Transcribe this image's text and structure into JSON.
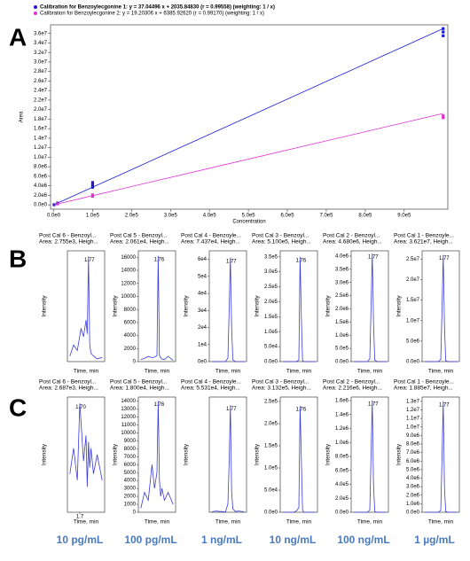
{
  "panel_labels": [
    "A",
    "B",
    "C"
  ],
  "concentrations": [
    "10 pg/mL",
    "100 pg/mL",
    "1 ng/mL",
    "10 ng/mL",
    "100 ng/mL",
    "1 µg/mL"
  ],
  "chart_data": [
    {
      "type": "scatter",
      "xlabel": "Concentration",
      "ylabel": "Area",
      "xlim": [
        -8000,
        1012000
      ],
      "ylim": [
        -900000,
        37800000
      ],
      "xticks": [
        {
          "value": 0,
          "label": "0.0e0"
        },
        {
          "value": 100000,
          "label": "1.0e5"
        },
        {
          "value": 200000,
          "label": "2.0e5"
        },
        {
          "value": 300000,
          "label": "3.0e5"
        },
        {
          "value": 400000,
          "label": "4.0e5"
        },
        {
          "value": 500000,
          "label": "5.0e5"
        },
        {
          "value": 600000,
          "label": "6.0e5"
        },
        {
          "value": 700000,
          "label": "7.0e5"
        },
        {
          "value": 800000,
          "label": "8.0e5"
        },
        {
          "value": 900000,
          "label": "9.0e5"
        }
      ],
      "yticks": [
        {
          "value": 0,
          "label": "0.0e0"
        },
        {
          "value": 2000000,
          "label": "2.0e6"
        },
        {
          "value": 4000000,
          "label": "4.0e6"
        },
        {
          "value": 6000000,
          "label": "6.0e6"
        },
        {
          "value": 8000000,
          "label": "8.0e6"
        },
        {
          "value": 10000000,
          "label": "1.0e7"
        },
        {
          "value": 12000000,
          "label": "1.2e7"
        },
        {
          "value": 14000000,
          "label": "1.4e7"
        },
        {
          "value": 16000000,
          "label": "1.6e7"
        },
        {
          "value": 18000000,
          "label": "1.8e7"
        },
        {
          "value": 20000000,
          "label": "2.0e7"
        },
        {
          "value": 22000000,
          "label": "2.2e7"
        },
        {
          "value": 24000000,
          "label": "2.4e7"
        },
        {
          "value": 26000000,
          "label": "2.6e7"
        },
        {
          "value": 28000000,
          "label": "2.8e7"
        },
        {
          "value": 30000000,
          "label": "3.0e7"
        },
        {
          "value": 32000000,
          "label": "3.2e7"
        },
        {
          "value": 34000000,
          "label": "3.4e7"
        },
        {
          "value": 36000000,
          "label": "3.6e7"
        }
      ],
      "series": [
        {
          "name": "Calibration for Benzoylecgonine 1: y = 37.04496 x + 2035.84830 (r = 0.99558) (weighting: 1 / x)",
          "color": "#1a1ad6",
          "x": [
            1000,
            10000,
            100000,
            100000,
            100000,
            1000000,
            1000000,
            1000000
          ],
          "values": [
            30000,
            370000,
            3700000,
            4200000,
            4700000,
            35500000,
            36300000,
            37000000
          ],
          "line": {
            "x": [
              0,
              1000000
            ],
            "values": [
              2000,
              37000000
            ]
          }
        },
        {
          "name": "Calibration for Benzoylecgonine 2: y = 19.20306 x + 6385.92620 (r = 0.99170) (weighting: 1 / x)",
          "color": "#e030d0",
          "x": [
            10000,
            100000,
            100000,
            1000000,
            1000000
          ],
          "values": [
            200000,
            1800000,
            2100000,
            18300000,
            18700000
          ],
          "line": {
            "x": [
              0,
              1000000
            ],
            "values": [
              6000,
              19200000
            ]
          }
        }
      ]
    },
    {
      "type": "line",
      "title": "Post Cal 6 - Benzoyl...",
      "subtitle": "Area: 2.755e3, Heigh...",
      "ylabel": "Intensity",
      "xlabel": "Time, min",
      "peak_label": "1.77",
      "color": "#3b3bdb",
      "xlim": [
        1.6,
        1.9
      ],
      "ylim": [
        0,
        400
      ],
      "x": [
        1.62,
        1.65,
        1.68,
        1.71,
        1.73,
        1.75,
        1.76,
        1.77,
        1.78,
        1.79,
        1.81,
        1.84,
        1.88
      ],
      "values": [
        20,
        60,
        40,
        120,
        90,
        150,
        100,
        380,
        60,
        30,
        20,
        10,
        15
      ]
    },
    {
      "type": "line",
      "title": "Post Cal 5 - Benzoyl...",
      "subtitle": "Area: 2.061e4, Heigh...",
      "ylabel": "Intensity",
      "xlabel": "Time, min",
      "peak_label": "1.76",
      "color": "#3b3bdb",
      "xlim": [
        1.6,
        1.9
      ],
      "ylim": [
        0,
        17000
      ],
      "yticks": [
        0,
        2000,
        4000,
        6000,
        8000,
        10000,
        12000,
        14000,
        16000
      ],
      "x": [
        1.62,
        1.65,
        1.68,
        1.71,
        1.73,
        1.75,
        1.76,
        1.77,
        1.78,
        1.79,
        1.81,
        1.84,
        1.88
      ],
      "values": [
        300,
        500,
        800,
        600,
        700,
        900,
        16200,
        900,
        600,
        400,
        300,
        800,
        200
      ]
    },
    {
      "type": "line",
      "title": "Post Cal 4 - Benzoyle...",
      "subtitle": "Area: 7.437e4, Heigh...",
      "ylabel": "Intensity",
      "xlabel": "Time, min",
      "peak_label": "1.77",
      "color": "#3b3bdb",
      "xlim": [
        1.6,
        1.9
      ],
      "ylim": [
        0,
        65000
      ],
      "yticks": [
        {
          "value": 0,
          "label": "0e0"
        },
        {
          "value": 10000,
          "label": "1e4"
        },
        {
          "value": 20000,
          "label": "2e4"
        },
        {
          "value": 30000,
          "label": "3e4"
        },
        {
          "value": 40000,
          "label": "4e4"
        },
        {
          "value": 50000,
          "label": "5e4"
        },
        {
          "value": 60000,
          "label": "6e4"
        }
      ],
      "x": [
        1.62,
        1.65,
        1.68,
        1.71,
        1.73,
        1.75,
        1.76,
        1.77,
        1.78,
        1.79,
        1.81,
        1.84,
        1.88
      ],
      "values": [
        0,
        0,
        0,
        0,
        0,
        2000,
        30000,
        61000,
        20000,
        1000,
        0,
        0,
        0
      ]
    },
    {
      "type": "line",
      "title": "Post Cal 3 - Benzoyl...",
      "subtitle": "Area: 5.100e5, Heigh...",
      "ylabel": "Intensity",
      "xlabel": "Time, min",
      "peak_label": "1.76",
      "color": "#3b3bdb",
      "xlim": [
        1.6,
        1.9
      ],
      "ylim": [
        0,
        370000
      ],
      "yticks": [
        {
          "value": 0,
          "label": "0.0e0"
        },
        {
          "value": 50000,
          "label": "5.0e4"
        },
        {
          "value": 100000,
          "label": "1.0e5"
        },
        {
          "value": 150000,
          "label": "1.5e5"
        },
        {
          "value": 200000,
          "label": "2.0e5"
        },
        {
          "value": 250000,
          "label": "2.5e5"
        },
        {
          "value": 300000,
          "label": "3.0e5"
        },
        {
          "value": 350000,
          "label": "3.5e5"
        }
      ],
      "x": [
        1.62,
        1.65,
        1.68,
        1.71,
        1.73,
        1.75,
        1.76,
        1.77,
        1.78,
        1.79,
        1.81,
        1.84,
        1.88
      ],
      "values": [
        0,
        0,
        0,
        0,
        0,
        5000,
        350000,
        150000,
        3000,
        0,
        0,
        0,
        0
      ]
    },
    {
      "type": "line",
      "title": "Post Cal 2 - Benzoyl...",
      "subtitle": "Area: 4.680e6, Heigh...",
      "ylabel": "Intensity",
      "xlabel": "Time, min",
      "peak_label": "1.77",
      "color": "#3b3bdb",
      "xlim": [
        1.6,
        1.9
      ],
      "ylim": [
        0,
        4200000
      ],
      "yticks": [
        {
          "value": 0,
          "label": "0.0e0"
        },
        {
          "value": 500000,
          "label": "5.0e5"
        },
        {
          "value": 1000000,
          "label": "1.0e6"
        },
        {
          "value": 1500000,
          "label": "1.5e6"
        },
        {
          "value": 2000000,
          "label": "2.0e6"
        },
        {
          "value": 2500000,
          "label": "2.5e6"
        },
        {
          "value": 3000000,
          "label": "3.0e6"
        },
        {
          "value": 3500000,
          "label": "3.5e6"
        },
        {
          "value": 4000000,
          "label": "4.0e6"
        }
      ],
      "x": [
        1.62,
        1.65,
        1.68,
        1.71,
        1.73,
        1.75,
        1.76,
        1.77,
        1.78,
        1.79,
        1.81,
        1.84,
        1.88
      ],
      "values": [
        0,
        0,
        0,
        0,
        0,
        100000,
        2000000,
        4100000,
        1500000,
        50000,
        0,
        0,
        0
      ]
    },
    {
      "type": "line",
      "title": "Post Cal 1 - Benzoyle...",
      "subtitle": "Area: 3.621e7, Heigh...",
      "ylabel": "Intensity",
      "xlabel": "Time, min",
      "peak_label": "1.77",
      "color": "#3b3bdb",
      "xlim": [
        1.6,
        1.9
      ],
      "ylim": [
        0,
        27000000
      ],
      "yticks": [
        {
          "value": 0,
          "label": "0.0e0"
        },
        {
          "value": 5000000,
          "label": "5.0e6"
        },
        {
          "value": 10000000,
          "label": "1.0e7"
        },
        {
          "value": 15000000,
          "label": "1.5e7"
        },
        {
          "value": 20000000,
          "label": "2.0e7"
        },
        {
          "value": 25000000,
          "label": "2.5e7"
        }
      ],
      "x": [
        1.62,
        1.65,
        1.68,
        1.71,
        1.73,
        1.75,
        1.76,
        1.77,
        1.78,
        1.79,
        1.81,
        1.84,
        1.88
      ],
      "values": [
        0,
        0,
        0,
        0,
        0,
        500000,
        12000000,
        26000000,
        9000000,
        200000,
        0,
        0,
        0
      ]
    },
    {
      "type": "line",
      "title": "Post Cal 6 - Benzoyl...",
      "subtitle": "Area: 2.687e3, Heigh...",
      "ylabel": "Intensity",
      "xlabel": "Time, min",
      "peak_label": "1.70",
      "color": "#3b3bdb",
      "xlim": [
        1.6,
        1.9
      ],
      "ylim": [
        0,
        900
      ],
      "xticks": [
        1.7
      ],
      "x": [
        1.62,
        1.65,
        1.68,
        1.7,
        1.73,
        1.75,
        1.76,
        1.77,
        1.78,
        1.79,
        1.81,
        1.84,
        1.88
      ],
      "values": [
        300,
        500,
        250,
        850,
        400,
        600,
        200,
        550,
        350,
        500,
        300,
        450,
        250
      ]
    },
    {
      "type": "line",
      "title": "Post Cal 5 - Benzoyl...",
      "subtitle": "Area: 1.800e4, Heigh...",
      "ylabel": "Intensity",
      "xlabel": "Time, min",
      "peak_label": "1.76",
      "color": "#3b3bdb",
      "xlim": [
        1.6,
        1.9
      ],
      "ylim": [
        0,
        14500
      ],
      "yticks": [
        0,
        1000,
        2000,
        3000,
        4000,
        5000,
        6000,
        7000,
        8000,
        9000,
        10000,
        11000,
        12000,
        13000,
        14000
      ],
      "x": [
        1.62,
        1.65,
        1.68,
        1.71,
        1.73,
        1.75,
        1.76,
        1.77,
        1.78,
        1.79,
        1.81,
        1.84,
        1.88
      ],
      "values": [
        500,
        2500,
        1500,
        6000,
        3000,
        5000,
        14000,
        4000,
        2000,
        3000,
        1500,
        2500,
        1000
      ]
    },
    {
      "type": "line",
      "title": "Post Cal 4 - Benzoyle...",
      "subtitle": "Area: 5.531e4, Heigh...",
      "ylabel": "Intensity",
      "xlabel": "Time, min",
      "peak_label": "1.77",
      "color": "#3b3bdb",
      "xlim": [
        1.6,
        1.9
      ],
      "ylim": [
        0,
        28000
      ],
      "x": [
        1.62,
        1.65,
        1.68,
        1.71,
        1.73,
        1.75,
        1.76,
        1.77,
        1.78,
        1.79,
        1.81,
        1.84,
        1.88
      ],
      "values": [
        100,
        300,
        200,
        150,
        100,
        2000,
        12000,
        26000,
        5000,
        800,
        200,
        300,
        100
      ]
    },
    {
      "type": "line",
      "title": "Post Cal 3 - Benzoyl...",
      "subtitle": "Area: 3.132e5, Heigh...",
      "ylabel": "Intensity",
      "xlabel": "Time, min",
      "peak_label": "1.76",
      "color": "#3b3bdb",
      "xlim": [
        1.6,
        1.9
      ],
      "ylim": [
        0,
        260000
      ],
      "yticks": [
        {
          "value": 0,
          "label": "0.0e0"
        },
        {
          "value": 50000,
          "label": "5.0e4"
        },
        {
          "value": 100000,
          "label": "1.0e5"
        },
        {
          "value": 150000,
          "label": "1.5e5"
        },
        {
          "value": 200000,
          "label": "2.0e5"
        },
        {
          "value": 250000,
          "label": "2.5e5"
        }
      ],
      "x": [
        1.62,
        1.65,
        1.68,
        1.71,
        1.73,
        1.75,
        1.76,
        1.77,
        1.78,
        1.79,
        1.81,
        1.84,
        1.88
      ],
      "values": [
        0,
        0,
        0,
        0,
        3000,
        10000,
        240000,
        120000,
        5000,
        0,
        0,
        0,
        0
      ]
    },
    {
      "type": "line",
      "title": "Post Cal 2 - Benzoyl...",
      "subtitle": "Area: 2.216e6, Heigh...",
      "ylabel": "Intensity",
      "xlabel": "Time, min",
      "peak_label": "1.77",
      "color": "#3b3bdb",
      "xlim": [
        1.6,
        1.9
      ],
      "ylim": [
        0,
        1650000
      ],
      "yticks": [
        {
          "value": 0,
          "label": "0.0e0"
        },
        {
          "value": 200000,
          "label": "2.0e5"
        },
        {
          "value": 400000,
          "label": "4.0e5"
        },
        {
          "value": 600000,
          "label": "6.0e5"
        },
        {
          "value": 800000,
          "label": "8.0e5"
        },
        {
          "value": 1000000,
          "label": "1.0e6"
        },
        {
          "value": 1200000,
          "label": "1.2e6"
        },
        {
          "value": 1400000,
          "label": "1.4e6"
        },
        {
          "value": 1600000,
          "label": "1.6e6"
        }
      ],
      "x": [
        1.62,
        1.65,
        1.68,
        1.71,
        1.73,
        1.75,
        1.76,
        1.77,
        1.78,
        1.79,
        1.81,
        1.84,
        1.88
      ],
      "values": [
        0,
        0,
        0,
        0,
        0,
        30000,
        800000,
        1600000,
        400000,
        10000,
        0,
        0,
        0
      ]
    },
    {
      "type": "line",
      "title": "Post Cal 1 - Benzoyle...",
      "subtitle": "Area: 1.885e7, Heigh...",
      "ylabel": "Intensity",
      "xlabel": "Time, min",
      "peak_label": "1.77",
      "color": "#3b3bdb",
      "xlim": [
        1.6,
        1.9
      ],
      "ylim": [
        0,
        13500000
      ],
      "yticks": [
        {
          "value": 0,
          "label": "0.0e0"
        },
        {
          "value": 1000000,
          "label": "1.0e6"
        },
        {
          "value": 2000000,
          "label": "2.0e6"
        },
        {
          "value": 3000000,
          "label": "3.0e6"
        },
        {
          "value": 4000000,
          "label": "4.0e6"
        },
        {
          "value": 5000000,
          "label": "5.0e6"
        },
        {
          "value": 6000000,
          "label": "6.0e6"
        },
        {
          "value": 7000000,
          "label": "7.0e6"
        },
        {
          "value": 8000000,
          "label": "8.0e6"
        },
        {
          "value": 9000000,
          "label": "9.0e6"
        },
        {
          "value": 10000000,
          "label": "1.0e7"
        },
        {
          "value": 11000000,
          "label": "1.1e7"
        },
        {
          "value": 12000000,
          "label": "1.2e7"
        },
        {
          "value": 13000000,
          "label": "1.3e7"
        }
      ],
      "x": [
        1.62,
        1.65,
        1.68,
        1.71,
        1.73,
        1.75,
        1.76,
        1.77,
        1.78,
        1.79,
        1.81,
        1.84,
        1.88
      ],
      "values": [
        0,
        0,
        0,
        0,
        0,
        200000,
        6000000,
        13000000,
        3000000,
        100000,
        0,
        0,
        0
      ]
    }
  ]
}
